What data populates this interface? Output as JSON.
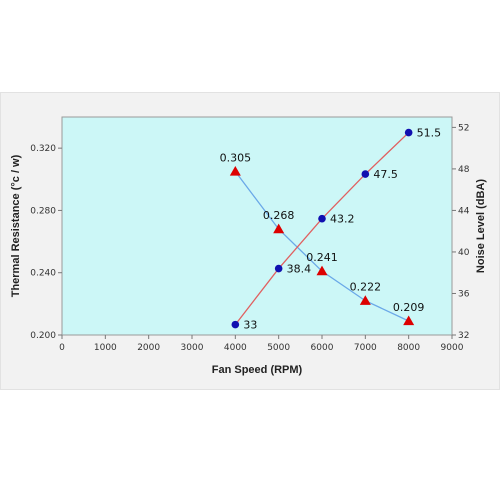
{
  "chart_data": {
    "type": "line",
    "title": "",
    "xlabel": "Fan Speed (RPM)",
    "ylabel_left": "Thermal Resistance (°c / w)",
    "ylabel_right": "Noise Level (dBA)",
    "xlim": [
      0,
      9000
    ],
    "x_ticks": [
      "0",
      "1000",
      "2000",
      "3000",
      "4000",
      "5000",
      "6000",
      "7000",
      "8000",
      "9000"
    ],
    "ylim_left": [
      0.2,
      0.34
    ],
    "y_left_ticks": [
      "0.200",
      "0.240",
      "0.280",
      "0.320"
    ],
    "ylim_right": [
      32,
      53
    ],
    "y_right_ticks": [
      "32",
      "36",
      "40",
      "44",
      "48",
      "52"
    ],
    "grid": false,
    "legend": "none",
    "plot_background": "#ccf7f7",
    "series": [
      {
        "axis": "left",
        "marker": "triangle",
        "line_color": "#6aa8e8",
        "marker_color": "#dd0000",
        "x": [
          4000,
          5000,
          6000,
          7000,
          8000
        ],
        "values": [
          0.305,
          0.268,
          0.241,
          0.222,
          0.209
        ],
        "labels": [
          "0.305",
          "0.268",
          "0.241",
          "0.222",
          "0.209"
        ]
      },
      {
        "axis": "right",
        "marker": "circle",
        "line_color": "#e06060",
        "marker_color": "#1010b0",
        "x": [
          4000,
          5000,
          6000,
          7000,
          8000
        ],
        "values": [
          33,
          38.4,
          43.2,
          47.5,
          51.5
        ],
        "labels": [
          "33",
          "38.4",
          "43.2",
          "47.5",
          "51.5"
        ]
      }
    ]
  }
}
